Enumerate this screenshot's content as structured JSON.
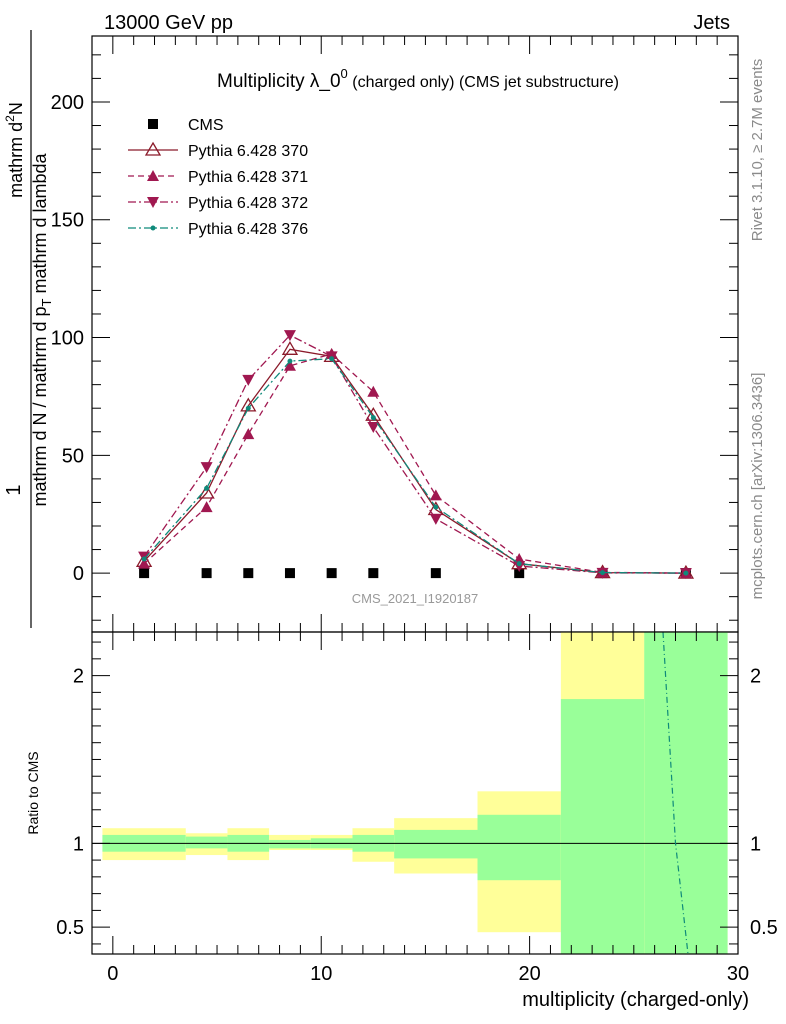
{
  "header": {
    "left": "13000 GeV pp",
    "right": "Jets"
  },
  "side": {
    "rivet": "Rivet 3.1.10, ≥ 2.7M events",
    "mcplots": "mcplots.cern.ch [arXiv:1306.3436]"
  },
  "chart_data": [
    {
      "type": "line",
      "title": "Multiplicity λ_0",
      "title_sup": "0",
      "title_suffix": "(charged only) (CMS jet substructure)",
      "watermark": "CMS_2021_I1920187",
      "ylabel_num": "1",
      "ylabel_den": "mathrm d N / mathrm d p",
      "ylabel_den_sub": "T",
      "ylabel_den_tail": "mathrm d N",
      "ylabel_top": "mathrm d",
      "ylabel_top_sup": "2",
      "ylabel_top_mid": "N",
      "ylabel_bottom": "mathrm d p",
      "ylabel_bottom_sub": "T",
      "ylabel_bottom_tail": "mathrm d lambda",
      "xlim": [
        -1,
        30
      ],
      "ylim": [
        -25,
        228
      ],
      "yticks": [
        0,
        50,
        100,
        150,
        200
      ],
      "legend_position": "top-left",
      "legend": [
        {
          "label": "CMS",
          "color": "#000000",
          "marker": "square",
          "dash": "none"
        },
        {
          "label": "Pythia 6.428 370",
          "color": "#8b1a2a",
          "marker": "triangle-up-open",
          "dash": "solid"
        },
        {
          "label": "Pythia 6.428 371",
          "color": "#a01850",
          "marker": "triangle-up",
          "dash": "dashed"
        },
        {
          "label": "Pythia 6.428 372",
          "color": "#a01850",
          "marker": "triangle-down",
          "dash": "dashdot"
        },
        {
          "label": "Pythia 6.428 376",
          "color": "#0f8a7a",
          "marker": "dot",
          "dash": "dashdot"
        }
      ],
      "x": [
        1.5,
        4.5,
        6.5,
        8.5,
        10.5,
        12.5,
        15.5,
        19.5,
        23.5,
        27.5
      ],
      "series": [
        {
          "name": "CMS",
          "values": [
            0,
            0,
            0,
            0,
            0,
            0,
            0,
            0,
            0,
            0
          ]
        },
        {
          "name": "Pythia 6.428 370",
          "values": [
            5,
            34,
            71,
            95,
            92,
            67,
            27,
            4,
            0.2,
            0
          ]
        },
        {
          "name": "Pythia 6.428 371",
          "values": [
            4,
            28,
            59,
            88,
            93,
            77,
            33,
            6,
            0.3,
            0
          ]
        },
        {
          "name": "Pythia 6.428 372",
          "values": [
            7,
            45,
            82,
            101,
            92,
            62,
            23,
            3,
            0.1,
            0
          ]
        },
        {
          "name": "Pythia 6.428 376",
          "values": [
            6,
            36,
            70,
            90,
            91,
            66,
            28,
            4,
            0.2,
            0
          ]
        }
      ]
    },
    {
      "type": "area",
      "ylabel": "Ratio to CMS",
      "xlabel": "multiplicity (charged-only)",
      "xlim": [
        -1,
        30
      ],
      "ylim": [
        0.34,
        2.26
      ],
      "xticks": [
        0,
        10,
        20,
        30
      ],
      "yticks": [
        0.5,
        1,
        2
      ],
      "ytick_labels": [
        "0.5",
        "1",
        "2"
      ],
      "bins": [
        {
          "lo": -0.5,
          "hi": 3.5,
          "green": [
            0.95,
            1.05
          ],
          "yellow": [
            0.9,
            1.09
          ]
        },
        {
          "lo": 3.5,
          "hi": 5.5,
          "green": [
            0.97,
            1.04
          ],
          "yellow": [
            0.93,
            1.06
          ]
        },
        {
          "lo": 5.5,
          "hi": 7.5,
          "green": [
            0.95,
            1.05
          ],
          "yellow": [
            0.9,
            1.09
          ]
        },
        {
          "lo": 7.5,
          "hi": 9.5,
          "green": [
            0.97,
            1.02
          ],
          "yellow": [
            0.96,
            1.05
          ]
        },
        {
          "lo": 9.5,
          "hi": 11.5,
          "green": [
            0.97,
            1.03
          ],
          "yellow": [
            0.96,
            1.05
          ]
        },
        {
          "lo": 11.5,
          "hi": 13.5,
          "green": [
            0.95,
            1.05
          ],
          "yellow": [
            0.89,
            1.09
          ]
        },
        {
          "lo": 13.5,
          "hi": 17.5,
          "green": [
            0.91,
            1.08
          ],
          "yellow": [
            0.82,
            1.15
          ]
        },
        {
          "lo": 17.5,
          "hi": 21.5,
          "green": [
            0.78,
            1.17
          ],
          "yellow": [
            0.47,
            1.31
          ]
        },
        {
          "lo": 21.5,
          "hi": 25.5,
          "green": [
            0.34,
            1.86
          ],
          "yellow": [
            0.34,
            2.26
          ]
        },
        {
          "lo": 25.5,
          "hi": 29.5,
          "green": [
            0.34,
            2.26
          ],
          "yellow": [
            0.34,
            2.26
          ]
        }
      ],
      "ratio_line": {
        "name": "Pythia 6.428 376",
        "x": [
          26.4,
          27.0,
          27.6
        ],
        "values": [
          2.26,
          1.0,
          0.34
        ]
      }
    }
  ]
}
